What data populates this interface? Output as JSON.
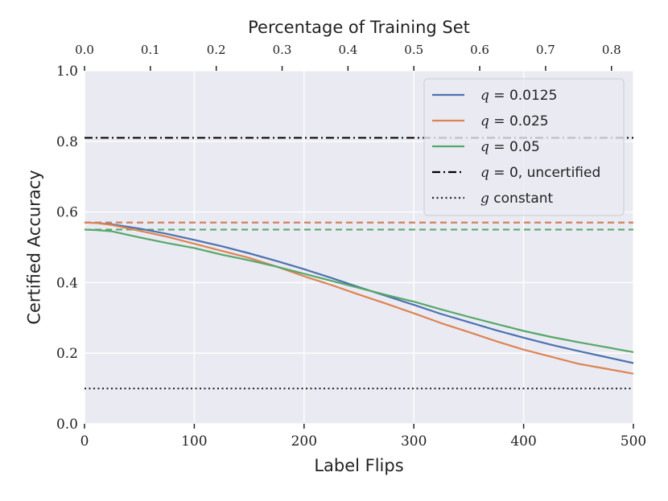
{
  "chart_data": {
    "type": "line",
    "title": "",
    "xlabel": "Label Flips",
    "ylabel": "Certified Accuracy",
    "xlim": [
      0,
      500
    ],
    "ylim": [
      0.0,
      1.0
    ],
    "x_ticks": [
      "0",
      "100",
      "200",
      "300",
      "400",
      "500"
    ],
    "x_tick_values": [
      0,
      100,
      200,
      300,
      400,
      500
    ],
    "y_ticks": [
      "0.0",
      "0.2",
      "0.4",
      "0.6",
      "0.8",
      "1.0"
    ],
    "y_tick_values": [
      0.0,
      0.2,
      0.4,
      0.6,
      0.8,
      1.0
    ],
    "top_axis": {
      "label": "Percentage of Training Set",
      "ticks": [
        "0.0",
        "0.1",
        "0.2",
        "0.3",
        "0.4",
        "0.5",
        "0.6",
        "0.7",
        "0.8"
      ],
      "tick_values": [
        0.0,
        0.1,
        0.2,
        0.3,
        0.4,
        0.5,
        0.6,
        0.7,
        0.8
      ],
      "xlim": [
        0.0,
        0.8333
      ]
    },
    "grid": true,
    "legend_position": "top-right",
    "series": [
      {
        "name": "q = 0.0125",
        "legend_math": "q",
        "legend_rest": " = 0.0125",
        "color": "#4c72b0",
        "x": [
          0,
          10,
          25,
          50,
          75,
          100,
          125,
          150,
          175,
          200,
          225,
          250,
          275,
          300,
          325,
          350,
          375,
          400,
          425,
          450,
          475,
          500
        ],
        "y": [
          0.57,
          0.569,
          0.565,
          0.553,
          0.538,
          0.521,
          0.503,
          0.483,
          0.461,
          0.438,
          0.413,
          0.387,
          0.362,
          0.337,
          0.311,
          0.288,
          0.265,
          0.244,
          0.224,
          0.206,
          0.189,
          0.172
        ],
        "baseline": 0.57
      },
      {
        "name": "q = 0.025",
        "legend_math": "q",
        "legend_rest": " = 0.025",
        "color": "#dd8452",
        "x": [
          0,
          10,
          25,
          50,
          75,
          100,
          125,
          150,
          175,
          200,
          225,
          250,
          275,
          300,
          325,
          350,
          375,
          400,
          425,
          450,
          475,
          500
        ],
        "y": [
          0.57,
          0.569,
          0.563,
          0.547,
          0.53,
          0.51,
          0.49,
          0.47,
          0.445,
          0.418,
          0.393,
          0.366,
          0.34,
          0.313,
          0.285,
          0.26,
          0.234,
          0.21,
          0.19,
          0.17,
          0.156,
          0.142
        ],
        "baseline": 0.57
      },
      {
        "name": "q = 0.05",
        "legend_math": "q",
        "legend_rest": " = 0.05",
        "color": "#55a868",
        "x": [
          0,
          10,
          25,
          50,
          75,
          100,
          125,
          150,
          175,
          200,
          225,
          250,
          275,
          300,
          325,
          350,
          375,
          400,
          425,
          450,
          475,
          500
        ],
        "y": [
          0.55,
          0.549,
          0.545,
          0.528,
          0.512,
          0.498,
          0.479,
          0.463,
          0.445,
          0.425,
          0.405,
          0.385,
          0.365,
          0.346,
          0.324,
          0.303,
          0.283,
          0.263,
          0.246,
          0.231,
          0.217,
          0.203
        ],
        "baseline": 0.55
      }
    ],
    "reference_lines": [
      {
        "name": "q = 0, uncertified",
        "legend_math": "q",
        "legend_rest": " = 0, uncertified",
        "y": 0.81,
        "style": "dashdot",
        "color": "#000000"
      },
      {
        "name": "g constant",
        "legend_math": "g",
        "legend_rest": " constant",
        "y": 0.1,
        "style": "dotted",
        "color": "#222222"
      }
    ]
  }
}
